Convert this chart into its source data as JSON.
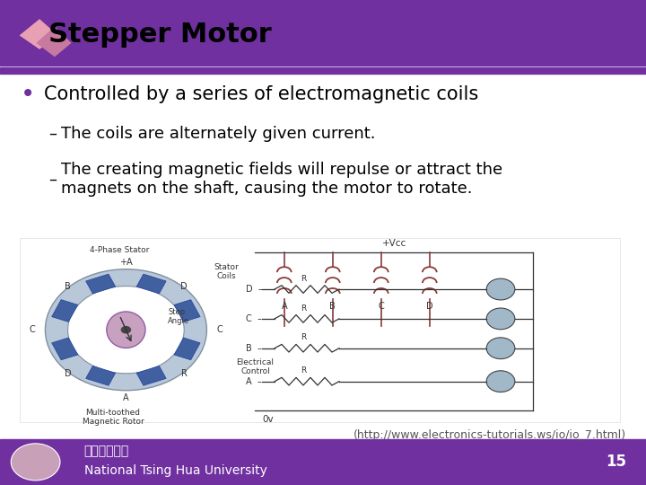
{
  "title": "Stepper Motor",
  "bullet": "Controlled by a series of electromagnetic coils",
  "sub1": "The coils are alternately given current.",
  "sub2": "The creating magnetic fields will repulse or attract the\nmagnets on the shaft, causing the motor to rotate.",
  "citation": "(http://www.electronics-tutorials.ws/io/io_7.html)",
  "footer_text": "National Tsing Hua University",
  "chinese_text": "國立清華大學",
  "page_number": "15",
  "bg_color": "#ffffff",
  "title_bar_color": "#7030a0",
  "footer_bar_color": "#7030a0",
  "title_color": "#000000",
  "bullet_color": "#000000",
  "accent_color": "#7030a0",
  "title_fontsize": 22,
  "bullet_fontsize": 15,
  "sub_fontsize": 13,
  "citation_fontsize": 9,
  "footer_fontsize": 10,
  "page_num_fontsize": 12,
  "coil_color": "#8B3A3A",
  "motor_outer_color": "#b8c8d8",
  "motor_ring_edge": "#8090a0",
  "rotor_face": "#c8a0c0",
  "rotor_edge": "#9060a0",
  "pole_face": "#4060a0",
  "pole_edge": "#2040a0",
  "trans_face": "#a0b8c8",
  "pink_logo": "#e8a0b4",
  "mauve_logo": "#c879a0"
}
